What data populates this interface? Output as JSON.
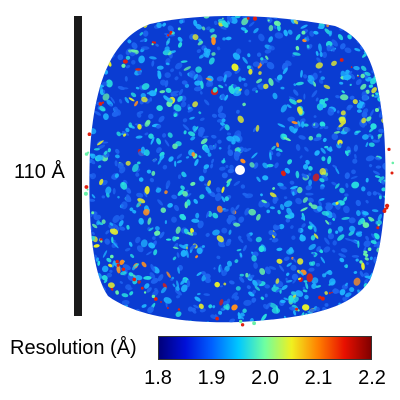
{
  "scale_bar": {
    "label": "110 Å"
  },
  "colorbar": {
    "title": "Resolution (Å)",
    "min": 1.8,
    "max": 2.2,
    "ticks": [
      "1.8",
      "1.9",
      "2.0",
      "2.1",
      "2.2"
    ],
    "stops": [
      "#00007a",
      "#0010d8",
      "#0060ff",
      "#00c8ff",
      "#70ffa0",
      "#f0f020",
      "#ff8000",
      "#e81000",
      "#800000"
    ]
  },
  "map": {
    "icon": "cryo-em-local-resolution-map-icon",
    "base_color": "#0a3cd2",
    "accent_colors": [
      "#1e64f0",
      "#1fb4ff",
      "#28e0e0",
      "#68f0a8",
      "#e8f02a",
      "#ff9020",
      "#e02010"
    ]
  }
}
